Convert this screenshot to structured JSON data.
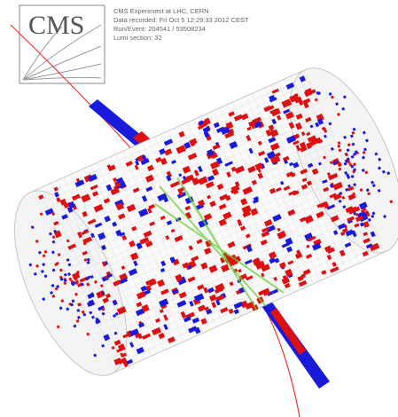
{
  "logo": {
    "text": "CMS"
  },
  "info": {
    "lines": [
      "CMS Experiment at LHC, CERN",
      "Data recorded: Fri Oct 5 12:29:33 2012 CEST",
      "Run/Event: 204541 / 53508234",
      "Lumi section: 32"
    ]
  }
}
